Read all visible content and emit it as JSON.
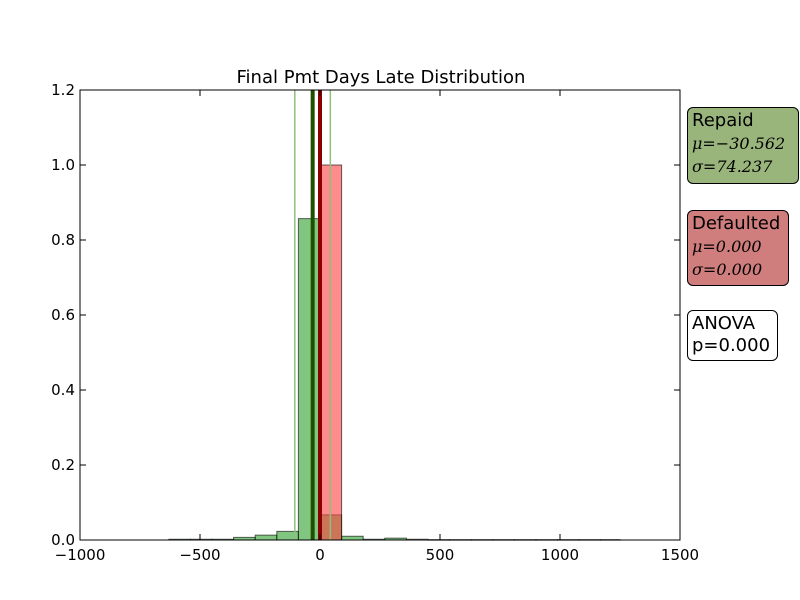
{
  "chart_data": {
    "type": "histogram",
    "title": "Final Pmt Days Late Distribution",
    "xlabel": "",
    "ylabel": "",
    "xlim": [
      -1000,
      1500
    ],
    "ylim": [
      0,
      1.2
    ],
    "xticks": [
      -1000,
      -500,
      0,
      500,
      1000,
      1500
    ],
    "xtick_labels": [
      "−1000",
      "−500",
      "0",
      "500",
      "1000",
      "1500"
    ],
    "yticks": [
      0.0,
      0.2,
      0.4,
      0.6,
      0.8,
      1.0,
      1.2
    ],
    "ytick_labels": [
      "0.0",
      "0.2",
      "0.4",
      "0.6",
      "0.8",
      "1.0",
      "1.2"
    ],
    "series": [
      {
        "name": "Repaid",
        "color": "#2ca02c",
        "bins": [
          {
            "x0": -630,
            "x1": -540,
            "value": 0.002
          },
          {
            "x0": -540,
            "x1": -450,
            "value": 0.002
          },
          {
            "x0": -450,
            "x1": -360,
            "value": 0.002
          },
          {
            "x0": -360,
            "x1": -270,
            "value": 0.007
          },
          {
            "x0": -270,
            "x1": -180,
            "value": 0.013
          },
          {
            "x0": -180,
            "x1": -90,
            "value": 0.023
          },
          {
            "x0": -90,
            "x1": 0,
            "value": 0.857
          },
          {
            "x0": 0,
            "x1": 90,
            "value": 0.067
          },
          {
            "x0": 90,
            "x1": 180,
            "value": 0.01
          },
          {
            "x0": 180,
            "x1": 270,
            "value": 0.002
          },
          {
            "x0": 270,
            "x1": 360,
            "value": 0.005
          },
          {
            "x0": 360,
            "x1": 450,
            "value": 0.002
          },
          {
            "x0": 450,
            "x1": 540,
            "value": 0.001
          },
          {
            "x0": 540,
            "x1": 630,
            "value": 0.001
          },
          {
            "x0": 630,
            "x1": 720,
            "value": 0.001
          },
          {
            "x0": 720,
            "x1": 810,
            "value": 0.001
          },
          {
            "x0": 810,
            "x1": 900,
            "value": 0.001
          },
          {
            "x0": 900,
            "x1": 990,
            "value": 0.001
          },
          {
            "x0": 990,
            "x1": 1080,
            "value": 0.001
          },
          {
            "x0": 1080,
            "x1": 1170,
            "value": 0.001
          },
          {
            "x0": 1170,
            "x1": 1250,
            "value": 0.001
          }
        ],
        "mean": -30.562,
        "std": 74.237,
        "mean_line_color": "#1f5000",
        "std_line_color": "#8fbf7f"
      },
      {
        "name": "Defaulted",
        "color": "#ff4040",
        "bins": [
          {
            "x0": 0,
            "x1": 90,
            "value": 1.0
          }
        ],
        "mean": 0.0,
        "std": 0.0,
        "mean_line_color": "#8b0000"
      }
    ],
    "std_lines_x": [
      -105,
      43
    ],
    "mean_lines_x": [
      -30.562,
      0
    ],
    "annotations": {
      "repaid": {
        "name": "Repaid",
        "mu": "μ=−30.562",
        "sigma": "σ=74.237",
        "color": "#9ab57c"
      },
      "defaulted": {
        "name": "Defaulted",
        "mu": "μ=0.000",
        "sigma": "σ=0.000",
        "color": "#d07d7d"
      },
      "anova": {
        "line1": "ANOVA",
        "line2": "p=0.000"
      }
    }
  }
}
